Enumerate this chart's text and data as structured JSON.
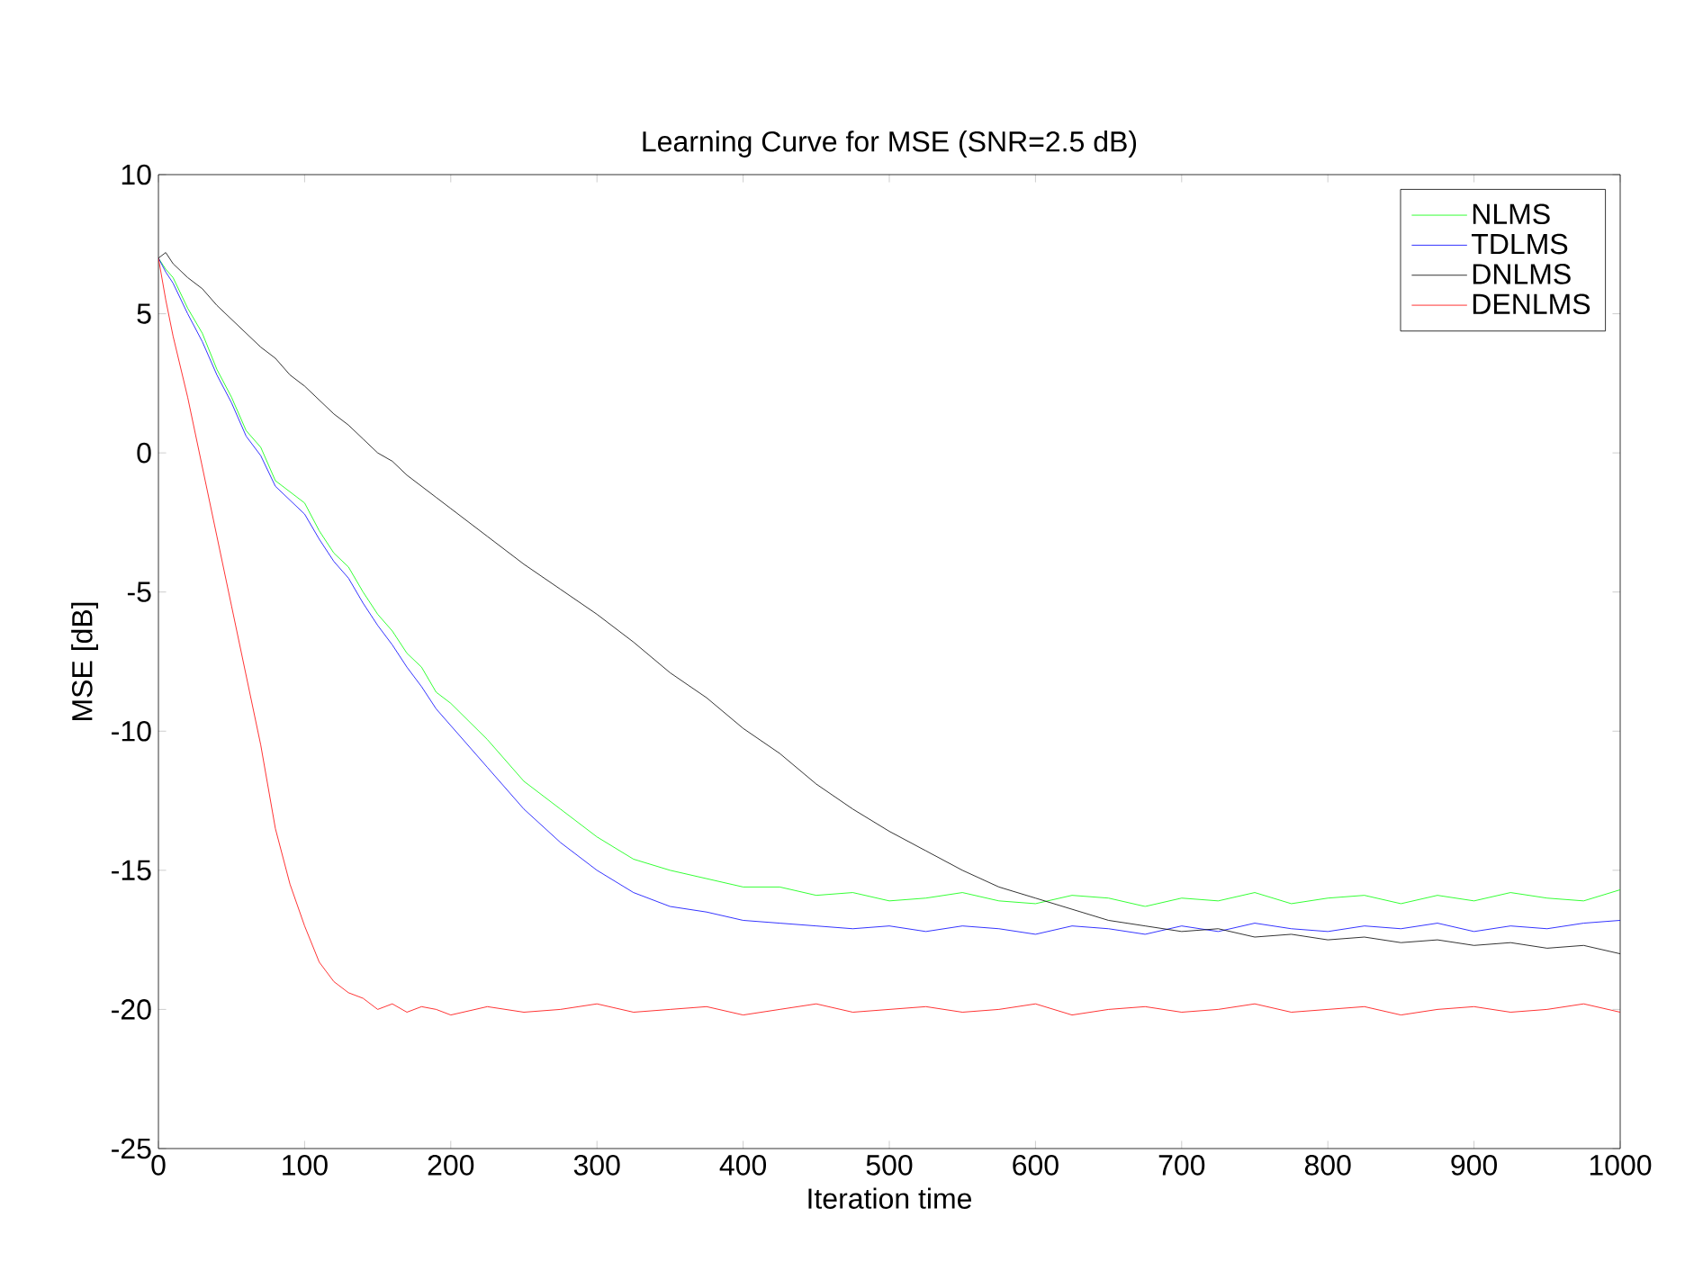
{
  "chart_data": {
    "type": "line",
    "title": "Learning Curve for MSE (SNR=2.5 dB)",
    "xlabel": "Iteration time",
    "ylabel": "MSE [dB]",
    "x": [
      0,
      5,
      10,
      20,
      30,
      40,
      50,
      60,
      70,
      80,
      90,
      100,
      110,
      120,
      130,
      140,
      150,
      160,
      170,
      180,
      190,
      200,
      225,
      250,
      275,
      300,
      325,
      350,
      375,
      400,
      425,
      450,
      475,
      500,
      525,
      550,
      575,
      600,
      625,
      650,
      675,
      700,
      725,
      750,
      775,
      800,
      825,
      850,
      875,
      900,
      925,
      950,
      975,
      1000
    ],
    "series": [
      {
        "name": "NLMS",
        "color": "#00ff00",
        "values": [
          7,
          6.6,
          6.3,
          5.2,
          4.3,
          3.0,
          2.0,
          0.8,
          0.2,
          -1.0,
          -1.4,
          -1.8,
          -2.8,
          -3.6,
          -4.1,
          -5.0,
          -5.8,
          -6.4,
          -7.2,
          -7.7,
          -8.6,
          -9.0,
          -10.3,
          -11.8,
          -12.8,
          -13.8,
          -14.6,
          -15.0,
          -15.3,
          -15.6,
          -15.6,
          -15.9,
          -15.8,
          -16.1,
          -16.0,
          -15.8,
          -16.1,
          -16.2,
          -15.9,
          -16.0,
          -16.3,
          -16.0,
          -16.1,
          -15.8,
          -16.2,
          -16.0,
          -15.9,
          -16.2,
          -15.9,
          -16.1,
          -15.8,
          -16.0,
          -16.1,
          -15.7
        ]
      },
      {
        "name": "TDLMS",
        "color": "#0000ff",
        "values": [
          7,
          6.5,
          6.1,
          5.0,
          4.0,
          2.8,
          1.8,
          0.6,
          -0.1,
          -1.2,
          -1.7,
          -2.2,
          -3.1,
          -3.9,
          -4.5,
          -5.4,
          -6.2,
          -6.9,
          -7.7,
          -8.4,
          -9.2,
          -9.8,
          -11.3,
          -12.8,
          -14.0,
          -15.0,
          -15.8,
          -16.3,
          -16.5,
          -16.8,
          -16.9,
          -17.0,
          -17.1,
          -17.0,
          -17.2,
          -17.0,
          -17.1,
          -17.3,
          -17.0,
          -17.1,
          -17.3,
          -17.0,
          -17.2,
          -16.9,
          -17.1,
          -17.2,
          -17.0,
          -17.1,
          -16.9,
          -17.2,
          -17.0,
          -17.1,
          -16.9,
          -16.8
        ]
      },
      {
        "name": "DNLMS",
        "color": "#000000",
        "values": [
          7.0,
          7.2,
          6.8,
          6.3,
          5.9,
          5.3,
          4.8,
          4.3,
          3.8,
          3.4,
          2.8,
          2.4,
          1.9,
          1.4,
          1.0,
          0.5,
          0.0,
          -0.3,
          -0.8,
          -1.2,
          -1.6,
          -2.0,
          -3.0,
          -4.0,
          -4.9,
          -5.8,
          -6.8,
          -7.9,
          -8.8,
          -9.9,
          -10.8,
          -11.9,
          -12.8,
          -13.6,
          -14.3,
          -15.0,
          -15.6,
          -16.0,
          -16.4,
          -16.8,
          -17.0,
          -17.2,
          -17.1,
          -17.4,
          -17.3,
          -17.5,
          -17.4,
          -17.6,
          -17.5,
          -17.7,
          -17.6,
          -17.8,
          -17.7,
          -18.0
        ]
      },
      {
        "name": "DENLMS",
        "color": "#ff0000",
        "values": [
          7,
          5.5,
          4.2,
          2.0,
          -0.5,
          -3.0,
          -5.5,
          -8.0,
          -10.5,
          -13.5,
          -15.5,
          -17.0,
          -18.3,
          -19.0,
          -19.4,
          -19.6,
          -20.0,
          -19.8,
          -20.1,
          -19.9,
          -20.0,
          -20.2,
          -19.9,
          -20.1,
          -20.0,
          -19.8,
          -20.1,
          -20.0,
          -19.9,
          -20.2,
          -20.0,
          -19.8,
          -20.1,
          -20.0,
          -19.9,
          -20.1,
          -20.0,
          -19.8,
          -20.2,
          -20.0,
          -19.9,
          -20.1,
          -20.0,
          -19.8,
          -20.1,
          -20.0,
          -19.9,
          -20.2,
          -20.0,
          -19.9,
          -20.1,
          -20.0,
          -19.8,
          -20.1
        ]
      }
    ],
    "xlim": [
      0,
      1000
    ],
    "ylim": [
      -25,
      10
    ],
    "xticks": [
      0,
      100,
      200,
      300,
      400,
      500,
      600,
      700,
      800,
      900,
      1000
    ],
    "yticks": [
      -25,
      -20,
      -15,
      -10,
      -5,
      0,
      5,
      10
    ],
    "grid": false,
    "legend": "top right",
    "marker": "none",
    "line_style": "solid"
  }
}
